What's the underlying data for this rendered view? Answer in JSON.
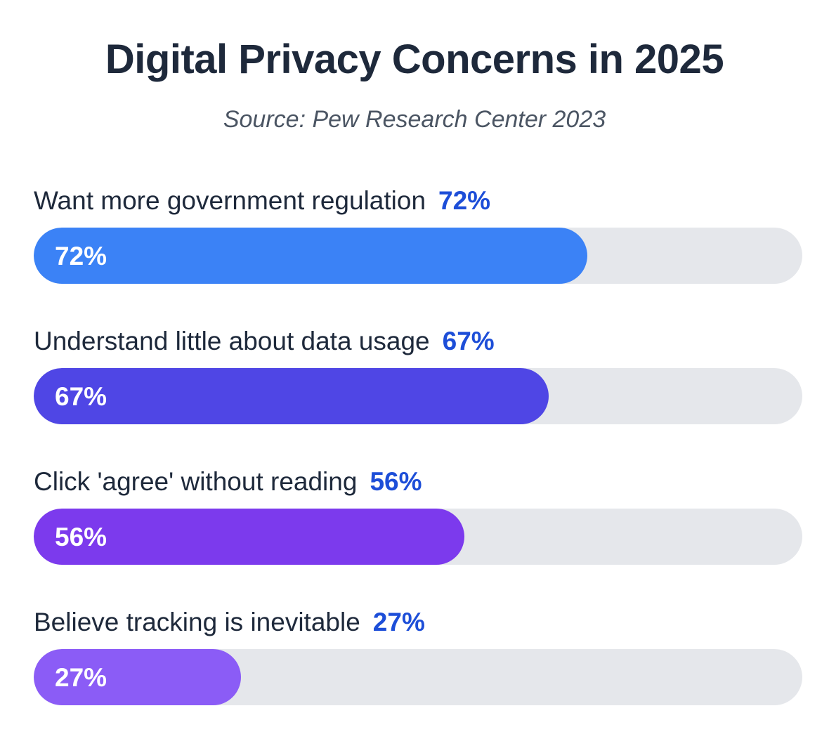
{
  "header": {
    "title": "Digital Privacy Concerns in 2025",
    "subtitle": "Source: Pew Research Center 2023"
  },
  "chart_data": {
    "type": "bar",
    "orientation": "horizontal",
    "title": "Digital Privacy Concerns in 2025",
    "subtitle": "Source: Pew Research Center 2023",
    "categories": [
      "Want more government regulation",
      "Understand little about data usage",
      "Click 'agree' without reading",
      "Believe tracking is inevitable"
    ],
    "values": [
      72,
      67,
      56,
      27
    ],
    "value_labels": [
      "72%",
      "67%",
      "56%",
      "27%"
    ],
    "unit": "%",
    "xlim": [
      0,
      100
    ],
    "grid": false,
    "legend": "none",
    "colors": [
      "#3b82f6",
      "#4f46e5",
      "#7c3aed",
      "#8b5cf6"
    ],
    "track_color": "#e5e7eb",
    "value_text_color": "#1d4ed8"
  }
}
